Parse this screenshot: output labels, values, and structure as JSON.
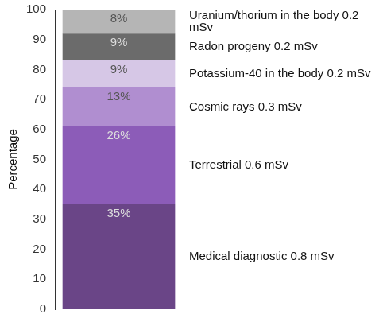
{
  "chart_data": {
    "type": "bar",
    "stacked": true,
    "orientation": "vertical",
    "y_label": "Percentage",
    "categories": [
      null
    ],
    "series": [
      {
        "name": "Medical diagnostic 0.8 mSv",
        "color": "#6a4587",
        "values": [
          35
        ],
        "value_labels": [
          "35%"
        ]
      },
      {
        "name": "Terrestrial 0.6 mSv",
        "color": "#8c5cb8",
        "values": [
          26
        ],
        "value_labels": [
          "26%"
        ]
      },
      {
        "name": "Cosmic rays 0.3 mSv",
        "color": "#b08ed0",
        "values": [
          13
        ],
        "value_labels": [
          "13%"
        ]
      },
      {
        "name": "Potassium-40 in the body 0.2 mSv",
        "color": "#d6c7e6",
        "values": [
          9
        ],
        "value_labels": [
          "9%"
        ]
      },
      {
        "name": "Radon progeny 0.2 mSv",
        "color": "#6b6b6b",
        "values": [
          9
        ],
        "value_labels": [
          "9%"
        ]
      },
      {
        "name": "Uranium/thorium in the body 0.2 mSv",
        "color": "#b5b5b5",
        "values": [
          8
        ],
        "value_labels": [
          "8%"
        ]
      }
    ],
    "ylim": [
      0,
      100
    ],
    "yticks": [
      0,
      10,
      20,
      30,
      40,
      50,
      60,
      70,
      80,
      90,
      100
    ],
    "grid": false,
    "data_labels": true,
    "tick_labels": "y"
  }
}
